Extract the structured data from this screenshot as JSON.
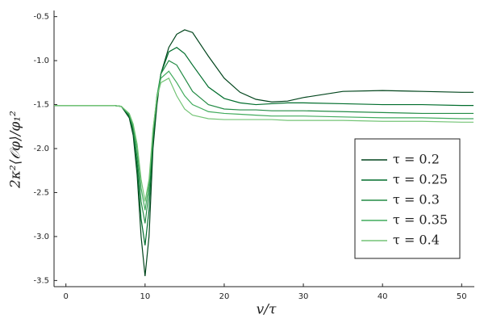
{
  "chart_data": {
    "type": "line",
    "xlabel": "v/τ",
    "ylabel": "2κ²⟨𝒪φ⟩/φ₁²",
    "x": [
      -1.5,
      0,
      2,
      4,
      6,
      7,
      8,
      8.5,
      9,
      9.5,
      10,
      10.5,
      11,
      11.5,
      12,
      13,
      14,
      15,
      16,
      18,
      20,
      22,
      24,
      26,
      28,
      30,
      35,
      40,
      45,
      50,
      51.5
    ],
    "series": [
      {
        "name": "τ = 0.2",
        "color": "#00441b",
        "values": [
          -1.51,
          -1.51,
          -1.51,
          -1.51,
          -1.51,
          -1.52,
          -1.65,
          -1.85,
          -2.3,
          -3.0,
          -3.45,
          -3.0,
          -2.0,
          -1.5,
          -1.15,
          -0.85,
          -0.7,
          -0.65,
          -0.68,
          -0.95,
          -1.2,
          -1.36,
          -1.44,
          -1.47,
          -1.46,
          -1.42,
          -1.35,
          -1.34,
          -1.35,
          -1.36,
          -1.36
        ]
      },
      {
        "name": "τ = 0.25",
        "color": "#006d2c",
        "values": [
          -1.51,
          -1.51,
          -1.51,
          -1.51,
          -1.51,
          -1.52,
          -1.63,
          -1.8,
          -2.2,
          -2.8,
          -3.1,
          -2.7,
          -1.9,
          -1.45,
          -1.15,
          -0.9,
          -0.85,
          -0.92,
          -1.05,
          -1.3,
          -1.43,
          -1.48,
          -1.5,
          -1.49,
          -1.48,
          -1.48,
          -1.49,
          -1.5,
          -1.5,
          -1.51,
          -1.51
        ]
      },
      {
        "name": "τ = 0.3",
        "color": "#238b45",
        "values": [
          -1.51,
          -1.51,
          -1.51,
          -1.51,
          -1.51,
          -1.52,
          -1.62,
          -1.77,
          -2.1,
          -2.6,
          -2.85,
          -2.5,
          -1.85,
          -1.4,
          -1.15,
          -1.0,
          -1.05,
          -1.2,
          -1.35,
          -1.5,
          -1.55,
          -1.56,
          -1.56,
          -1.57,
          -1.57,
          -1.57,
          -1.58,
          -1.59,
          -1.6,
          -1.6,
          -1.6
        ]
      },
      {
        "name": "τ = 0.35",
        "color": "#41ab5d",
        "values": [
          -1.51,
          -1.51,
          -1.51,
          -1.51,
          -1.51,
          -1.52,
          -1.61,
          -1.74,
          -2.0,
          -2.45,
          -2.7,
          -2.4,
          -1.8,
          -1.4,
          -1.2,
          -1.12,
          -1.25,
          -1.4,
          -1.5,
          -1.58,
          -1.6,
          -1.61,
          -1.62,
          -1.63,
          -1.63,
          -1.63,
          -1.64,
          -1.65,
          -1.65,
          -1.66,
          -1.66
        ]
      },
      {
        "name": "τ = 0.4",
        "color": "#74c476",
        "values": [
          -1.51,
          -1.51,
          -1.51,
          -1.51,
          -1.51,
          -1.52,
          -1.6,
          -1.72,
          -1.95,
          -2.35,
          -2.6,
          -2.35,
          -1.78,
          -1.42,
          -1.25,
          -1.2,
          -1.4,
          -1.55,
          -1.62,
          -1.66,
          -1.67,
          -1.67,
          -1.67,
          -1.67,
          -1.68,
          -1.68,
          -1.68,
          -1.69,
          -1.69,
          -1.7,
          -1.7
        ]
      }
    ],
    "xlim": [
      -1.5,
      51.6
    ],
    "ylim": [
      -3.57,
      -0.43
    ],
    "xticks": [
      0,
      10,
      20,
      30,
      40,
      50
    ],
    "yticks": [
      -3.5,
      {
        "value": -3.0,
        "label": "-3.0"
      },
      -2.5,
      {
        "value": -2.0,
        "label": "-2.0"
      },
      -1.5,
      {
        "value": -1.0,
        "label": "-1.0"
      },
      -0.5
    ],
    "grid": false,
    "legend": "right"
  }
}
